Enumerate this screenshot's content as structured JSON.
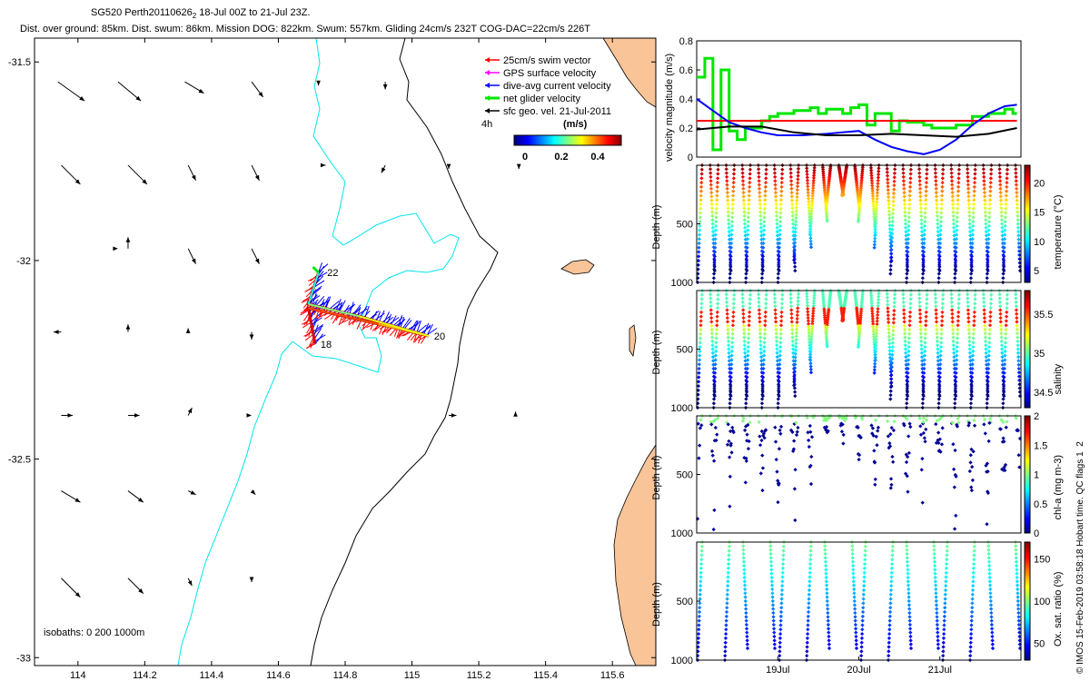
{
  "header": {
    "line1_prefix": "SG520 Perth20110626",
    "line1_sub": "2",
    "line1_suffix": " 18-Jul 00Z to 21-Jul 23Z.",
    "line2": "Dist. over ground: 85km. Dist. swum: 86km. Mission DOG: 822km. Swum: 557km. Gliding 24cm/s 232T COG-DAC=22cm/s 226T"
  },
  "footer": "© IMOS 15-Feb-2019 03:58:18 Hobart time. QC flags 1  2",
  "colors": {
    "land": "#f9c497",
    "isobath200": "#00e5ee",
    "isobath1000": "#000000",
    "swim": "#ff0000",
    "gps": "#ff00ff",
    "dac": "#0000ff",
    "net": "#00e600",
    "geo": "#000000"
  },
  "chart_data": [
    {
      "type": "map",
      "xlim": [
        113.87,
        115.73
      ],
      "ylim": [
        -33.02,
        -31.44
      ],
      "xticks": [
        114,
        114.2,
        114.4,
        114.6,
        114.8,
        115,
        115.2,
        115.4,
        115.6
      ],
      "yticks": [
        -31.5,
        -32,
        -32.5,
        -33
      ],
      "legend": {
        "entries": [
          "25cm/s swim vector",
          "GPS surface velocity",
          "dive-avg current velocity",
          "net glider velocity",
          "sfc geo. vel. 21-Jul-2011"
        ],
        "scale_label": "4h",
        "colorbar_label": "(m/s)",
        "colorbar_ticks": [
          "0",
          "0.2",
          "0.4"
        ]
      },
      "isobath_label": "isobaths: 0   200  1000m",
      "day_labels": [
        {
          "text": "18",
          "lon": 114.71,
          "lat": -32.21
        },
        {
          "text": "20",
          "lon": 115.05,
          "lat": -32.19
        },
        {
          "text": "22",
          "lon": 114.73,
          "lat": -32.03
        }
      ],
      "track": [
        [
          114.71,
          -32.21
        ],
        [
          114.69,
          -32.12
        ],
        [
          114.9,
          -32.16
        ],
        [
          115.05,
          -32.19
        ],
        [
          114.84,
          -32.14
        ],
        [
          114.69,
          -32.11
        ],
        [
          114.72,
          -32.03
        ]
      ],
      "geo_vectors": [
        {
          "lon": 113.94,
          "lat": -31.55,
          "u": 0.07,
          "v": -0.05
        },
        {
          "lon": 114.12,
          "lat": -31.55,
          "u": 0.06,
          "v": -0.05
        },
        {
          "lon": 114.32,
          "lat": -31.55,
          "u": 0.05,
          "v": -0.03
        },
        {
          "lon": 114.52,
          "lat": -31.55,
          "u": 0.03,
          "v": -0.04
        },
        {
          "lon": 114.72,
          "lat": -31.55,
          "u": 0.0,
          "v": -0.01
        },
        {
          "lon": 114.92,
          "lat": -31.55,
          "u": 0.0,
          "v": -0.02
        },
        {
          "lon": 113.95,
          "lat": -31.76,
          "u": 0.05,
          "v": -0.05
        },
        {
          "lon": 114.15,
          "lat": -31.76,
          "u": 0.05,
          "v": -0.05
        },
        {
          "lon": 114.33,
          "lat": -31.76,
          "u": 0.02,
          "v": -0.04
        },
        {
          "lon": 114.52,
          "lat": -31.76,
          "u": 0.02,
          "v": -0.04
        },
        {
          "lon": 114.73,
          "lat": -31.76,
          "u": 0.01,
          "v": 0.0
        },
        {
          "lon": 114.92,
          "lat": -31.76,
          "u": -0.01,
          "v": -0.02
        },
        {
          "lon": 115.11,
          "lat": -31.76,
          "u": 0.0,
          "v": -0.01
        },
        {
          "lon": 115.32,
          "lat": -31.76,
          "u": 0.0,
          "v": -0.01
        },
        {
          "lon": 114.15,
          "lat": -31.97,
          "u": 0.0,
          "v": 0.03
        },
        {
          "lon": 114.33,
          "lat": -31.97,
          "u": 0.02,
          "v": -0.04
        },
        {
          "lon": 114.52,
          "lat": -31.97,
          "u": 0.02,
          "v": -0.04
        },
        {
          "lon": 114.12,
          "lat": -31.97,
          "u": 0.0,
          "v": 0.0
        },
        {
          "lon": 113.95,
          "lat": -32.18,
          "u": -0.02,
          "v": 0.0
        },
        {
          "lon": 114.15,
          "lat": -32.18,
          "u": 0.0,
          "v": 0.02
        },
        {
          "lon": 114.33,
          "lat": -32.18,
          "u": 0.0,
          "v": 0.01
        },
        {
          "lon": 114.52,
          "lat": -32.18,
          "u": 0.0,
          "v": -0.02
        },
        {
          "lon": 113.95,
          "lat": -32.39,
          "u": 0.03,
          "v": 0.0
        },
        {
          "lon": 114.15,
          "lat": -32.39,
          "u": 0.03,
          "v": 0.0
        },
        {
          "lon": 114.33,
          "lat": -32.39,
          "u": 0.01,
          "v": 0.02
        },
        {
          "lon": 114.52,
          "lat": -32.39,
          "u": 0.0,
          "v": 0.0
        },
        {
          "lon": 115.11,
          "lat": -32.39,
          "u": 0.02,
          "v": 0.0
        },
        {
          "lon": 115.31,
          "lat": -32.39,
          "u": 0.0,
          "v": 0.01
        },
        {
          "lon": 113.95,
          "lat": -32.58,
          "u": 0.05,
          "v": -0.03
        },
        {
          "lon": 114.15,
          "lat": -32.58,
          "u": 0.04,
          "v": -0.03
        },
        {
          "lon": 114.33,
          "lat": -32.58,
          "u": 0.02,
          "v": -0.01
        },
        {
          "lon": 114.52,
          "lat": -32.58,
          "u": 0.01,
          "v": -0.01
        },
        {
          "lon": 113.95,
          "lat": -32.8,
          "u": 0.05,
          "v": -0.05
        },
        {
          "lon": 114.15,
          "lat": -32.8,
          "u": 0.04,
          "v": -0.04
        },
        {
          "lon": 114.33,
          "lat": -32.8,
          "u": 0.01,
          "v": -0.02
        },
        {
          "lon": 114.52,
          "lat": -32.8,
          "u": 0.0,
          "v": -0.01
        }
      ]
    },
    {
      "type": "line",
      "ylabel": "velocity magnitude (m/s)",
      "ylim": [
        0,
        0.8
      ],
      "yticks": [
        "0",
        "0.2",
        "0.4",
        "0.6",
        "0.8"
      ],
      "x_days": [
        18,
        22
      ],
      "series": [
        {
          "name": "net glider velocity",
          "color": "#00e600",
          "x": [
            18.0,
            18.1,
            18.2,
            18.3,
            18.4,
            18.5,
            18.6,
            18.8,
            18.9,
            19.0,
            19.2,
            19.4,
            19.5,
            19.6,
            19.8,
            19.9,
            20.0,
            20.1,
            20.2,
            20.4,
            20.5,
            20.6,
            20.8,
            20.9,
            21.0,
            21.2,
            21.4,
            21.6,
            21.8,
            21.9
          ],
          "y": [
            0.55,
            0.68,
            0.05,
            0.6,
            0.18,
            0.12,
            0.2,
            0.25,
            0.28,
            0.3,
            0.32,
            0.34,
            0.3,
            0.33,
            0.3,
            0.34,
            0.36,
            0.22,
            0.3,
            0.18,
            0.25,
            0.24,
            0.22,
            0.2,
            0.2,
            0.22,
            0.28,
            0.3,
            0.33,
            0.3
          ]
        },
        {
          "name": "25cm/s swim",
          "color": "#ff0000",
          "x": [
            18.0,
            21.95
          ],
          "y": [
            0.25,
            0.25
          ]
        },
        {
          "name": "dive-avg current velocity",
          "color": "#0000ff",
          "x": [
            18.0,
            18.2,
            18.4,
            18.6,
            18.8,
            19.0,
            19.3,
            19.6,
            19.8,
            20.0,
            20.2,
            20.4,
            20.6,
            20.8,
            21.0,
            21.2,
            21.4,
            21.6,
            21.8,
            21.95
          ],
          "y": [
            0.4,
            0.32,
            0.24,
            0.2,
            0.17,
            0.15,
            0.15,
            0.16,
            0.17,
            0.18,
            0.12,
            0.07,
            0.04,
            0.02,
            0.05,
            0.12,
            0.22,
            0.3,
            0.35,
            0.36
          ]
        },
        {
          "name": "sfc geo. vel.",
          "color": "#000000",
          "x": [
            18.0,
            18.4,
            18.8,
            19.2,
            19.6,
            20.0,
            20.4,
            20.8,
            21.2,
            21.6,
            21.95
          ],
          "y": [
            0.19,
            0.21,
            0.21,
            0.17,
            0.15,
            0.15,
            0.16,
            0.15,
            0.14,
            0.16,
            0.2
          ]
        }
      ]
    },
    {
      "type": "scatter",
      "ylabel": "Depth (m)",
      "colorbar_label": "temperature (°C)",
      "ylim": [
        1000,
        0
      ],
      "yticks": [
        "500",
        "1000"
      ],
      "cticks": [
        "5",
        "10",
        "15",
        "20"
      ],
      "crange": [
        3,
        23
      ]
    },
    {
      "type": "scatter",
      "ylabel": "Depth (m)",
      "colorbar_label": "salinity",
      "ylim": [
        1000,
        0
      ],
      "yticks": [
        "500",
        "1000"
      ],
      "cticks": [
        "34.5",
        "35",
        "35.5"
      ],
      "crange": [
        34.3,
        35.8
      ]
    },
    {
      "type": "scatter",
      "ylabel": "Depth (m)",
      "colorbar_label": "chl-a (mg m-3)",
      "ylim": [
        1000,
        0
      ],
      "yticks": [
        "500",
        "1000"
      ],
      "cticks": [
        "0",
        "0.5",
        "1",
        "1.5",
        "2"
      ],
      "crange": [
        0,
        2
      ]
    },
    {
      "type": "scatter",
      "ylabel": "Depth (m)",
      "colorbar_label": "Ox. sat. ratio (%)",
      "ylim": [
        1000,
        0
      ],
      "yticks": [
        "500",
        "1000"
      ],
      "cticks": [
        "50",
        "100",
        "150"
      ],
      "crange": [
        30,
        170
      ],
      "xticks": [
        "19Jul",
        "20Jul",
        "21Jul"
      ]
    }
  ]
}
